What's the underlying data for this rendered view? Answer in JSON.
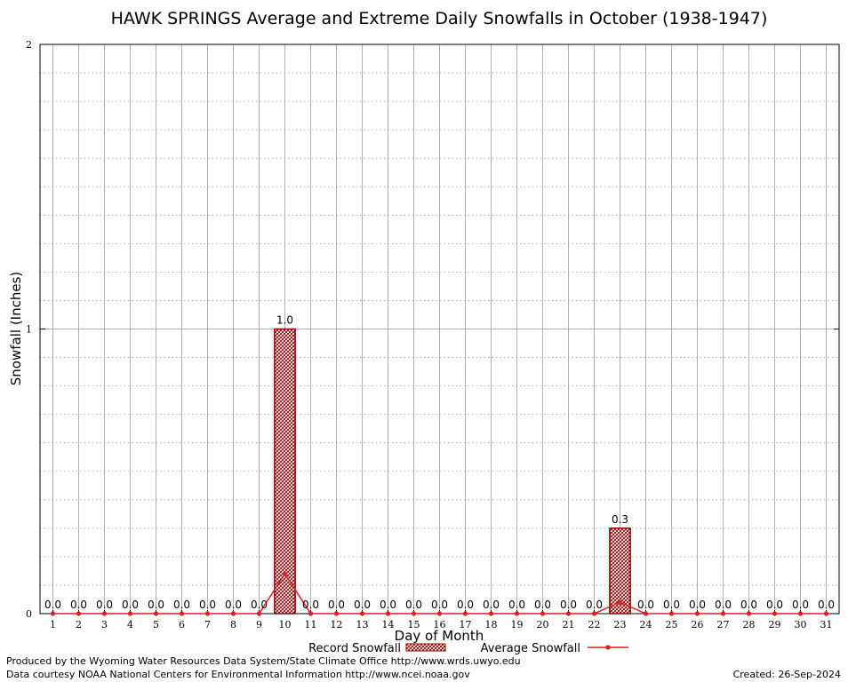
{
  "chart_data": {
    "type": "bar",
    "title": "HAWK SPRINGS Average and Extreme Daily Snowfalls in October (1938-1947)",
    "xlabel": "Day of Month",
    "ylabel": "Snowfall (Inches)",
    "categories": [
      "1",
      "2",
      "3",
      "4",
      "5",
      "6",
      "7",
      "8",
      "9",
      "10",
      "11",
      "12",
      "13",
      "14",
      "15",
      "16",
      "17",
      "18",
      "19",
      "20",
      "21",
      "22",
      "23",
      "24",
      "25",
      "26",
      "27",
      "28",
      "29",
      "30",
      "31"
    ],
    "ylim": [
      0,
      2
    ],
    "yticks": [
      "0",
      "1",
      "2"
    ],
    "series": [
      {
        "name": "Record Snowfall",
        "kind": "bar",
        "values": [
          0,
          0,
          0,
          0,
          0,
          0,
          0,
          0,
          0,
          1.0,
          0,
          0,
          0,
          0,
          0,
          0,
          0,
          0,
          0,
          0,
          0,
          0,
          0.3,
          0,
          0,
          0,
          0,
          0,
          0,
          0,
          0
        ],
        "labels": [
          "0.0",
          "0.0",
          "0.0",
          "0.0",
          "0.0",
          "0.0",
          "0.0",
          "0.0",
          "0.0",
          "1.0",
          "0.0",
          "0.0",
          "0.0",
          "0.0",
          "0.0",
          "0.0",
          "0.0",
          "0.0",
          "0.0",
          "0.0",
          "0.0",
          "0.0",
          "0.3",
          "0.0",
          "0.0",
          "0.0",
          "0.0",
          "0.0",
          "0.0",
          "0.0",
          "0.0"
        ]
      },
      {
        "name": "Average Snowfall",
        "kind": "line",
        "values": [
          0,
          0,
          0,
          0,
          0,
          0,
          0,
          0,
          0,
          0.14,
          0,
          0,
          0,
          0,
          0,
          0,
          0,
          0,
          0,
          0,
          0,
          0,
          0.04,
          0,
          0,
          0,
          0,
          0,
          0,
          0,
          0
        ]
      }
    ],
    "grid": true,
    "legend": "bottom",
    "colors": {
      "bar_edge": "#8b0000",
      "bar_fill": "#c9a0a0",
      "line": "#e02020",
      "grid": "#b0b0b0"
    }
  },
  "footer": {
    "produced_by": "Produced by the Wyoming Water Resources Data System/State Climate Office http://www.wrds.uwyo.edu",
    "courtesy": "Data courtesy NOAA National Centers for Environmental Information http://www.ncei.noaa.gov",
    "created": "Created:  26-Sep-2024"
  }
}
